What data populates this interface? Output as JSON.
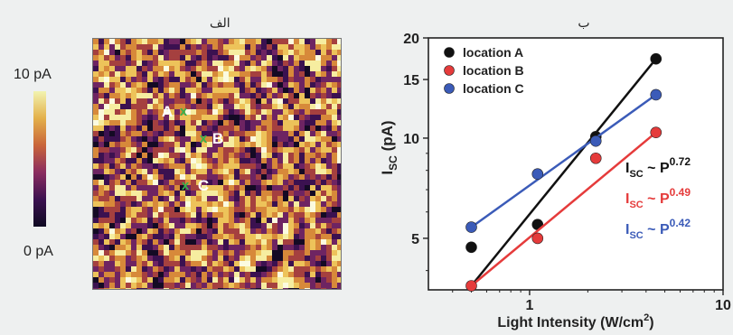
{
  "panel_a": {
    "label": "الف",
    "colorbar": {
      "max_label": "10 pA",
      "min_label": "0 pA",
      "colors": [
        "#f2f3b0",
        "#e3b04a",
        "#c9653a",
        "#8a2c60",
        "#3b1150",
        "#0f0a22"
      ]
    },
    "markers": [
      {
        "label": "A",
        "cross": "x"
      },
      {
        "label": "B",
        "cross": "x"
      },
      {
        "label": "C",
        "cross": "x"
      }
    ],
    "marker_color": "#37b24d"
  },
  "chart_data": {
    "type": "scatter",
    "panel_label": "ب",
    "xlabel": "Light Intensity (W/cm",
    "xlabel_sup": "2",
    "xlabel_close": ")",
    "ylabel_main": "I",
    "ylabel_sub": "SC",
    "ylabel_unit": " (pA)",
    "xscale": "log",
    "yscale": "log",
    "xlim": [
      0.3,
      10
    ],
    "ylim": [
      3.5,
      20
    ],
    "x_ticks": [
      {
        "v": 1,
        "label": "1"
      },
      {
        "v": 10,
        "label": "10"
      }
    ],
    "y_ticks": [
      {
        "v": 5,
        "label": "5"
      },
      {
        "v": 10,
        "label": "10"
      },
      {
        "v": 15,
        "label": "15"
      },
      {
        "v": 20,
        "label": "20"
      }
    ],
    "series": [
      {
        "name": "location A",
        "color": "#111111",
        "x": [
          0.5,
          1.1,
          2.2,
          4.5
        ],
        "y": [
          4.7,
          5.5,
          10.1,
          17.3
        ],
        "fit_x": [
          0.5,
          4.5
        ],
        "fit_y": [
          3.6,
          17.3
        ],
        "fit_label": {
          "base": "I",
          "sub": "SC",
          "mid": " ~ P",
          "exp": "0.72"
        }
      },
      {
        "name": "location B",
        "color": "#e53b3b",
        "x": [
          0.5,
          1.1,
          2.2,
          4.5
        ],
        "y": [
          3.6,
          5.0,
          8.7,
          10.4
        ],
        "fit_x": [
          0.5,
          4.5
        ],
        "fit_y": [
          3.6,
          10.4
        ],
        "fit_label": {
          "base": "I",
          "sub": "SC",
          "mid": " ~ P",
          "exp": "0.49"
        }
      },
      {
        "name": "location C",
        "color": "#3b5bb8",
        "x": [
          0.5,
          1.1,
          2.2,
          4.5
        ],
        "y": [
          5.4,
          7.8,
          9.8,
          13.5
        ],
        "fit_x": [
          0.5,
          4.5
        ],
        "fit_y": [
          5.4,
          13.5
        ],
        "fit_label": {
          "base": "I",
          "sub": "SC",
          "mid": " ~ P",
          "exp": "0.42"
        }
      }
    ]
  }
}
